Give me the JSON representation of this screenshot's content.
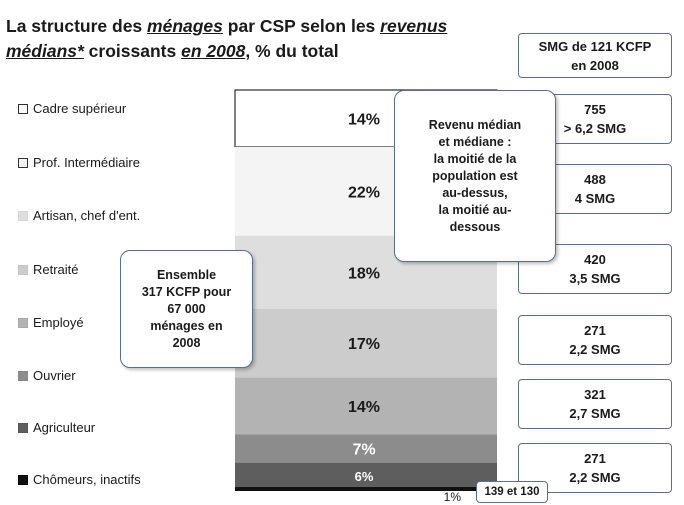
{
  "title": {
    "p1": "La structure des ",
    "p2": "ménages",
    "p3": " par CSP selon les ",
    "p4": "revenus médians*",
    "p5": " croissants ",
    "p6": "en 2008",
    "p7": ", % du total"
  },
  "smg_header": {
    "line1": "SMG de 121 KCFP",
    "line2": "en 2008"
  },
  "median_callout": {
    "lines": [
      "Revenu médian",
      "et médiane :",
      "la moitié de la",
      "population est",
      "au-dessus,",
      "la moitié au-",
      "dessous"
    ]
  },
  "total_callout": {
    "lines": [
      "Ensemble",
      "317 KCFP pour",
      "67 000",
      "ménages en",
      "2008"
    ]
  },
  "last_income_box": "139 et 130",
  "chart_data": {
    "type": "bar",
    "stacked": true,
    "unit": "%",
    "categories": [
      "Cadre supérieur",
      "Prof. Intermédiaire",
      "Artisan, chef d'ent.",
      "Retraité",
      "Employé",
      "Ouvrier",
      "Agriculteur",
      "Chômeurs, inactifs"
    ],
    "legend_labels": [
      "Cadre supérieur",
      "Prof. Intermédiaire",
      "Artisan, chef d'ent.",
      "Retraité",
      "Employé",
      "Ouvrier",
      "Agriculteur",
      "Chômeurs, inactifs"
    ],
    "values": [
      14,
      22,
      18,
      17,
      14,
      7,
      6,
      1
    ],
    "value_labels": [
      "14%",
      "22%",
      "18%",
      "17%",
      "14%",
      "7%",
      "6%",
      "1%"
    ],
    "colors": [
      "#ffffff",
      "#f4f4f4",
      "#dedede",
      "#cccccc",
      "#b3b3b3",
      "#8c8c8c",
      "#5e5e5e",
      "#111111"
    ],
    "median_income_kcfp": [
      "755",
      "488",
      "420",
      "271",
      "321",
      "271"
    ],
    "median_income_smg": [
      "> 6,2 SMG",
      "4 SMG",
      "3,5 SMG",
      "2,2 SMG",
      "2,7 SMG",
      "2,2 SMG"
    ]
  }
}
